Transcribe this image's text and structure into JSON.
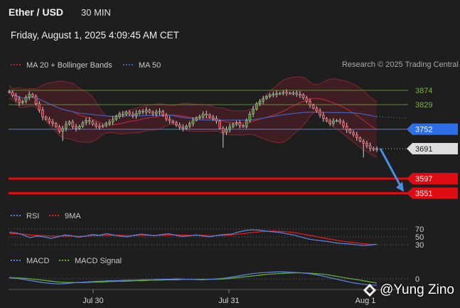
{
  "header": {
    "title": "Ether / USD",
    "timeframe": "30 MIN",
    "datetime": "Friday, August 1, 2025 4:09:45 AM CET"
  },
  "legend_main": [
    {
      "label": "MA 20 + Bollinger Bands",
      "color": "#b3262b"
    },
    {
      "label": "MA 50",
      "color": "#3e5bb5"
    }
  ],
  "credit": "Research © 2025 Trading Central",
  "legend_rsi": [
    {
      "label": "RSI",
      "color": "#5b7fd6"
    },
    {
      "label": "9MA",
      "color": "#e01b1b"
    }
  ],
  "legend_macd": [
    {
      "label": "MACD",
      "color": "#5b7fd6"
    },
    {
      "label": "MACD Signal",
      "color": "#5fae2e"
    }
  ],
  "watermark": "@Yung Zino",
  "chart_data": {
    "type": "candlestick",
    "y_axis_labels": [
      "3874",
      "3829",
      "3752",
      "3691",
      "3597",
      "3551"
    ],
    "levels": [
      {
        "value": 3874,
        "label": "3874",
        "style": "resistance-line",
        "color": "#5b8f2a",
        "text_color": "#7cb342"
      },
      {
        "value": 3829,
        "label": "3829",
        "style": "resistance-line",
        "color": "#5b8f2a",
        "text_color": "#7cb342"
      },
      {
        "value": 3752,
        "label": "3752",
        "style": "pivot",
        "color": "#2e6ee8",
        "text_color": "#ffffff"
      },
      {
        "value": 3691,
        "label": "3691",
        "style": "last-price",
        "color": "#dddddd",
        "text_color": "#222222"
      },
      {
        "value": 3597,
        "label": "3597",
        "style": "support",
        "color": "#e00c14",
        "text_color": "#ffffff"
      },
      {
        "value": 3551,
        "label": "3551",
        "style": "support",
        "color": "#e00c14",
        "text_color": "#ffffff"
      }
    ],
    "x_labels": [
      "Jul 30",
      "Jul 31",
      "Aug 1"
    ],
    "close_series": [
      3868,
      3858,
      3846,
      3835,
      3840,
      3852,
      3862,
      3855,
      3832,
      3812,
      3790,
      3784,
      3775,
      3770,
      3760,
      3745,
      3755,
      3768,
      3775,
      3760,
      3754,
      3762,
      3772,
      3780,
      3776,
      3768,
      3761,
      3760,
      3764,
      3770,
      3775,
      3783,
      3792,
      3800,
      3798,
      3806,
      3800,
      3795,
      3802,
      3809,
      3806,
      3812,
      3805,
      3800,
      3806,
      3808,
      3796,
      3784,
      3778,
      3772,
      3765,
      3758,
      3755,
      3762,
      3770,
      3780,
      3788,
      3792,
      3800,
      3797,
      3790,
      3785,
      3778,
      3755,
      3742,
      3752,
      3760,
      3768,
      3772,
      3764,
      3760,
      3780,
      3800,
      3815,
      3832,
      3840,
      3848,
      3855,
      3860,
      3862,
      3864,
      3865,
      3868,
      3866,
      3864,
      3866,
      3862,
      3860,
      3850,
      3840,
      3828,
      3818,
      3810,
      3796,
      3785,
      3778,
      3770,
      3778,
      3780,
      3774,
      3762,
      3750,
      3742,
      3735,
      3725,
      3715,
      3708,
      3700,
      3692,
      3688,
      3691
    ],
    "projection": {
      "from": 3691,
      "to": 3551
    },
    "rsi": {
      "levels": [
        70,
        50,
        30
      ],
      "rsi_values": [
        62,
        60,
        55,
        48,
        52,
        50,
        46,
        50,
        55,
        53,
        49,
        52,
        56,
        54,
        58,
        55,
        52,
        50,
        54,
        57,
        55,
        53,
        56,
        58,
        54,
        51,
        53,
        55,
        52,
        50,
        54,
        56,
        57,
        62,
        66,
        68,
        67,
        65,
        63,
        61,
        58,
        55,
        50,
        45,
        42,
        40,
        38,
        35,
        33,
        32,
        30,
        28,
        29,
        31
      ],
      "ma_values": [
        58,
        58,
        57,
        55,
        54,
        53,
        52,
        52,
        52,
        52,
        52,
        52,
        53,
        53,
        54,
        54,
        54,
        53,
        53,
        54,
        54,
        54,
        54,
        55,
        55,
        54,
        54,
        54,
        54,
        53,
        53,
        54,
        55,
        57,
        59,
        61,
        63,
        64,
        65,
        64,
        63,
        61,
        58,
        55,
        52,
        48,
        45,
        42,
        39,
        37,
        35,
        33,
        31,
        30
      ]
    },
    "macd": {
      "zero_label": "0",
      "macd_values": [
        2,
        1,
        -2,
        -5,
        -8,
        -10,
        -11,
        -10,
        -8,
        -7,
        -6,
        -5,
        -4,
        -4,
        -3,
        -3,
        -2,
        -2,
        -1,
        -1,
        0,
        -1,
        -1,
        -2,
        -1,
        0,
        2,
        5,
        8,
        11,
        13,
        14,
        15,
        15,
        14,
        13,
        11,
        8,
        4,
        0,
        -4,
        -8,
        -11,
        -13,
        -14
      ],
      "signal_values": [
        3,
        2,
        1,
        -1,
        -3,
        -5,
        -7,
        -8,
        -8,
        -8,
        -7,
        -7,
        -6,
        -5,
        -5,
        -4,
        -4,
        -3,
        -3,
        -2,
        -2,
        -1,
        -1,
        -1,
        -1,
        -1,
        0,
        2,
        4,
        6,
        8,
        10,
        11,
        12,
        13,
        13,
        12,
        11,
        9,
        6,
        3,
        0,
        -3,
        -6,
        -9
      ]
    }
  }
}
